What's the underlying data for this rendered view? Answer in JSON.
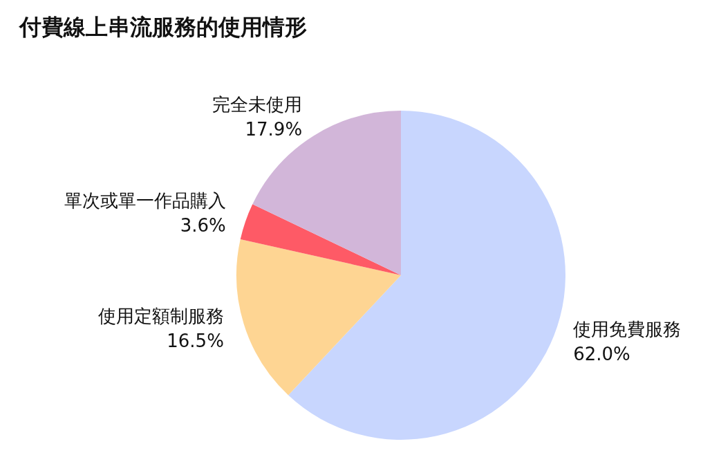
{
  "chart_data": {
    "type": "pie",
    "title": "付費線上串流服務的使用情形",
    "categories": [
      "使用免費服務",
      "使用定額制服務",
      "單次或單一作品購入",
      "完全未使用"
    ],
    "values": [
      62.0,
      16.5,
      3.6,
      17.9
    ],
    "value_labels": [
      "62.0%",
      "16.5%",
      "3.6%",
      "17.9%"
    ],
    "colors": [
      "#c8d6fe",
      "#fed593",
      "#fe5a66",
      "#d2b6d9"
    ],
    "legend": false
  }
}
